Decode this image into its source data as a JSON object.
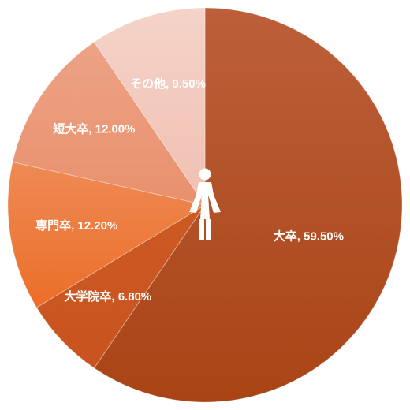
{
  "chart_data": {
    "type": "pie",
    "start": "top",
    "direction": "clockwise",
    "slices": [
      {
        "label": "大卒",
        "value": 59.5,
        "display": "大卒, 59.50%",
        "color_start": "#bc5f3a",
        "color_end": "#a94415"
      },
      {
        "label": "大学院卒",
        "value": 6.8,
        "display": "大学院卒, 6.80%",
        "color_start": "#cc5a22",
        "color_end": "#c95320"
      },
      {
        "label": "専門卒",
        "value": 12.2,
        "display": "専門卒, 12.20%",
        "color_start": "#ee8a55",
        "color_end": "#ec6e28"
      },
      {
        "label": "短大卒",
        "value": 12.0,
        "display": "短大卒, 12.00%",
        "color_start": "#eda386",
        "color_end": "#e9906c"
      },
      {
        "label": "その他",
        "value": 9.5,
        "display": "その他, 9.50%",
        "color_start": "#f5d3c8",
        "color_end": "#efc0b2"
      }
    ],
    "center_icon": "female-person-icon",
    "center_icon_color": "#ffffff"
  }
}
